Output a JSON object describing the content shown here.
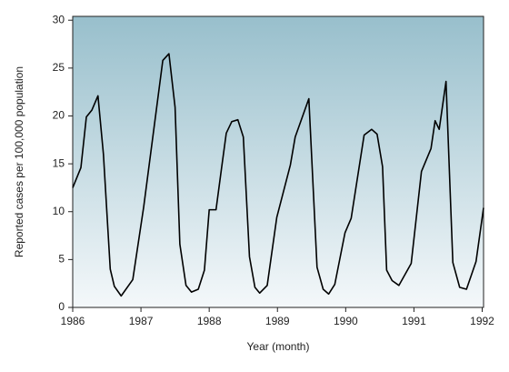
{
  "chart_data": {
    "type": "line",
    "x_label": "Year (month)",
    "y_label": "Reported cases per 100,000 population",
    "x": [
      1986.0,
      1986.12,
      1986.2,
      1986.28,
      1986.37,
      1986.45,
      1986.55,
      1986.61,
      1986.71,
      1986.88,
      1987.04,
      1987.32,
      1987.41,
      1987.5,
      1987.57,
      1987.66,
      1987.74,
      1987.84,
      1987.93,
      1988.0,
      1988.1,
      1988.18,
      1988.25,
      1988.33,
      1988.42,
      1988.5,
      1988.59,
      1988.67,
      1988.74,
      1988.85,
      1988.99,
      1989.19,
      1989.26,
      1989.46,
      1989.58,
      1989.67,
      1989.75,
      1989.84,
      1989.99,
      1990.08,
      1990.27,
      1990.38,
      1990.46,
      1990.54,
      1990.6,
      1990.68,
      1990.78,
      1990.96,
      1991.11,
      1991.25,
      1991.31,
      1991.37,
      1991.47,
      1991.57,
      1991.67,
      1991.77,
      1991.91,
      1992.02
    ],
    "series": [
      {
        "color": "#000000",
        "values": [
          12.5,
          14.6,
          19.9,
          20.6,
          22.1,
          16.0,
          4.0,
          2.2,
          1.2,
          2.9,
          10.5,
          25.8,
          26.5,
          20.9,
          6.6,
          2.3,
          1.6,
          1.9,
          3.9,
          10.2,
          10.2,
          14.5,
          18.2,
          19.4,
          19.6,
          17.8,
          5.3,
          2.1,
          1.5,
          2.3,
          9.4,
          14.9,
          17.8,
          21.8,
          4.2,
          1.9,
          1.4,
          2.4,
          7.8,
          9.3,
          18.0,
          18.6,
          18.1,
          14.7,
          3.9,
          2.8,
          2.3,
          4.6,
          14.2,
          16.6,
          19.5,
          18.6,
          23.6,
          4.7,
          2.1,
          1.9,
          4.8,
          10.4
        ]
      }
    ],
    "xlim": [
      1986,
      1992.02
    ],
    "xticks": [
      1986,
      1987,
      1988,
      1989,
      1990,
      1991,
      1992
    ],
    "ylim": [
      0,
      30.4
    ],
    "yticks": [
      0,
      5,
      10,
      15,
      20,
      25,
      30
    ]
  }
}
